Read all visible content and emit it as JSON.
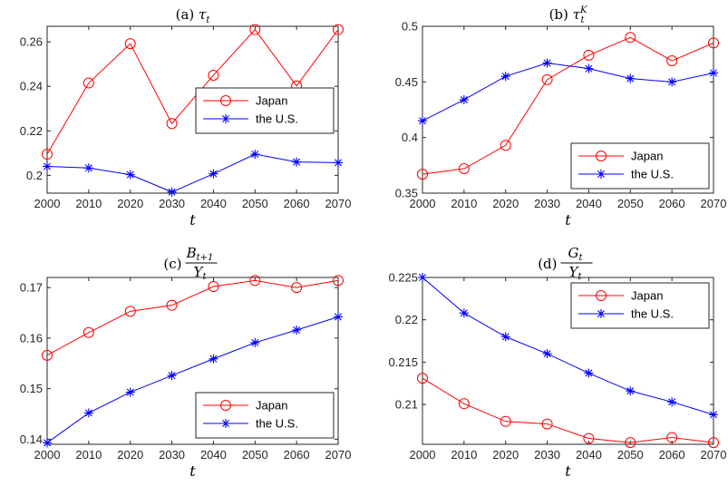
{
  "chart_data": [
    {
      "type": "line",
      "title": "(a) τ_t",
      "title_parts": {
        "prefix": "(a)",
        "symbol": "τ",
        "sub": "t"
      },
      "xlabel": "t",
      "ylabel": "",
      "x": [
        2000,
        2010,
        2020,
        2030,
        2040,
        2050,
        2060,
        2070
      ],
      "xlim": [
        2000,
        2070
      ],
      "ylim": [
        0.192,
        0.267
      ],
      "yticks": [
        0.2,
        0.22,
        0.24,
        0.26
      ],
      "ytick_labels": [
        "0.2",
        "0.22",
        "0.24",
        "0.26"
      ],
      "legend": "right",
      "series": [
        {
          "name": "Japan",
          "color": "#ff0000",
          "marker": "circle",
          "values": [
            0.2095,
            0.2415,
            0.2592,
            0.2233,
            0.245,
            0.2655,
            0.2402,
            0.2655
          ]
        },
        {
          "name": "the U.S.",
          "color": "#0000ff",
          "marker": "star",
          "values": [
            0.204,
            0.2033,
            0.2003,
            0.1925,
            0.2007,
            0.2095,
            0.206,
            0.2057
          ]
        }
      ]
    },
    {
      "type": "line",
      "title": "(b) τ_t^K",
      "title_parts": {
        "prefix": "(b)",
        "symbol": "τ",
        "sub": "t",
        "sup": "K"
      },
      "xlabel": "t",
      "ylabel": "",
      "x": [
        2000,
        2010,
        2020,
        2030,
        2040,
        2050,
        2060,
        2070
      ],
      "xlim": [
        2000,
        2070
      ],
      "ylim": [
        0.35,
        0.5
      ],
      "yticks": [
        0.35,
        0.4,
        0.45,
        0.5
      ],
      "ytick_labels": [
        "0.35",
        "0.4",
        "0.45",
        "0.5"
      ],
      "legend": "bottom-right",
      "series": [
        {
          "name": "Japan",
          "color": "#ff0000",
          "marker": "circle",
          "values": [
            0.367,
            0.372,
            0.393,
            0.452,
            0.474,
            0.49,
            0.469,
            0.485
          ]
        },
        {
          "name": "the U.S.",
          "color": "#0000ff",
          "marker": "star",
          "values": [
            0.415,
            0.434,
            0.455,
            0.467,
            0.462,
            0.453,
            0.45,
            0.458
          ]
        }
      ]
    },
    {
      "type": "line",
      "title": "(c) B_{t+1}/Y_t",
      "title_parts": {
        "prefix": "(c)",
        "num": "B",
        "num_sub": "t+1",
        "den": "Y",
        "den_sub": "t"
      },
      "xlabel": "t",
      "ylabel": "",
      "x": [
        2000,
        2010,
        2020,
        2030,
        2040,
        2050,
        2060,
        2070
      ],
      "xlim": [
        2000,
        2070
      ],
      "ylim": [
        0.139,
        0.172
      ],
      "yticks": [
        0.14,
        0.15,
        0.16,
        0.17
      ],
      "ytick_labels": [
        "0.14",
        "0.15",
        "0.16",
        "0.17"
      ],
      "legend": "bottom-right",
      "series": [
        {
          "name": "Japan",
          "color": "#ff0000",
          "marker": "circle",
          "values": [
            0.1566,
            0.1611,
            0.1653,
            0.1665,
            0.1702,
            0.1714,
            0.17,
            0.1714
          ]
        },
        {
          "name": "the U.S.",
          "color": "#0000ff",
          "marker": "star",
          "values": [
            0.1393,
            0.1452,
            0.1493,
            0.1526,
            0.1559,
            0.1591,
            0.1616,
            0.1642
          ]
        }
      ]
    },
    {
      "type": "line",
      "title": "(d) G_t/Y_t",
      "title_parts": {
        "prefix": "(d)",
        "num": "G",
        "num_sub": "t",
        "den": "Y",
        "den_sub": "t"
      },
      "xlabel": "t",
      "ylabel": "",
      "x": [
        2000,
        2010,
        2020,
        2030,
        2040,
        2050,
        2060,
        2070
      ],
      "xlim": [
        2000,
        2070
      ],
      "ylim": [
        0.2053,
        0.225
      ],
      "yticks": [
        0.21,
        0.215,
        0.22,
        0.225
      ],
      "ytick_labels": [
        "0.21",
        "0.215",
        "0.22",
        "0.225"
      ],
      "legend": "top-right",
      "series": [
        {
          "name": "Japan",
          "color": "#ff0000",
          "marker": "circle",
          "values": [
            0.2131,
            0.2101,
            0.208,
            0.2077,
            0.206,
            0.2055,
            0.2061,
            0.2055
          ]
        },
        {
          "name": "the U.S.",
          "color": "#0000ff",
          "marker": "star",
          "values": [
            0.225,
            0.2208,
            0.218,
            0.216,
            0.2137,
            0.2116,
            0.2103,
            0.2088
          ]
        }
      ]
    }
  ]
}
